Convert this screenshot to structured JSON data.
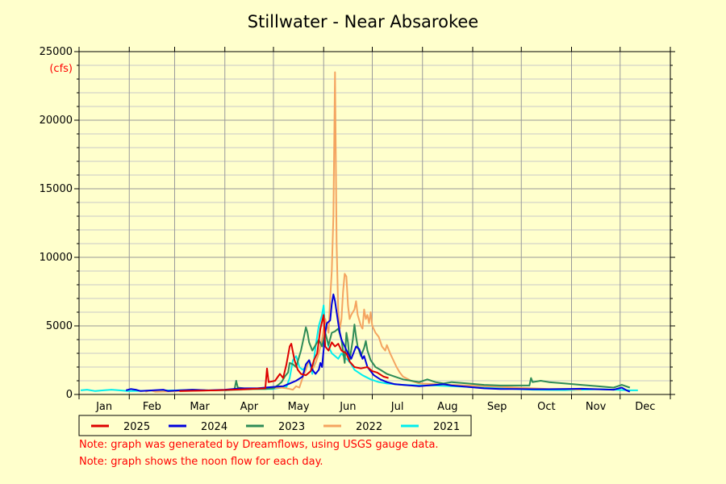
{
  "title": "Stillwater - Near Absarokee",
  "notes": [
    "Note: graph was generated by Dreamflows, using USGS gauge data.",
    "Note: graph shows the noon flow for each day."
  ],
  "chart_data": {
    "type": "line",
    "title": "Stillwater - Near Absarokee",
    "ylabel": "(cfs)",
    "xlabel": "",
    "ylim": [
      0,
      25000
    ],
    "xlim": [
      0,
      365
    ],
    "y_ticks": [
      0,
      5000,
      10000,
      15000,
      20000,
      25000
    ],
    "month_labels": [
      "Jan",
      "Feb",
      "Mar",
      "Apr",
      "May",
      "Jun",
      "Jul",
      "Aug",
      "Sep",
      "Oct",
      "Nov",
      "Dec"
    ],
    "month_starts": [
      0,
      31,
      59,
      90,
      120,
      151,
      181,
      212,
      243,
      273,
      304,
      334,
      365
    ],
    "grid": true,
    "legend_position": "bottom",
    "series": [
      {
        "name": "2025",
        "color": "#dd0000",
        "points": [
          [
            62,
            250
          ],
          [
            75,
            280
          ],
          [
            85,
            300
          ],
          [
            95,
            350
          ],
          [
            105,
            400
          ],
          [
            115,
            450
          ],
          [
            116,
            1900
          ],
          [
            117,
            900
          ],
          [
            121,
            1000
          ],
          [
            124,
            1500
          ],
          [
            126,
            1200
          ],
          [
            128,
            2200
          ],
          [
            130,
            3500
          ],
          [
            131,
            3700
          ],
          [
            133,
            2500
          ],
          [
            135,
            1800
          ],
          [
            137,
            1500
          ],
          [
            140,
            1400
          ],
          [
            143,
            1700
          ],
          [
            145,
            2500
          ],
          [
            147,
            3000
          ],
          [
            149,
            4800
          ],
          [
            151,
            5800
          ],
          [
            152,
            3500
          ],
          [
            154,
            3200
          ],
          [
            156,
            3800
          ],
          [
            158,
            3500
          ],
          [
            160,
            3700
          ],
          [
            162,
            3200
          ],
          [
            165,
            3000
          ],
          [
            167,
            2400
          ],
          [
            170,
            2000
          ],
          [
            174,
            1900
          ],
          [
            178,
            2000
          ],
          [
            181,
            1700
          ],
          [
            184,
            1600
          ],
          [
            188,
            1300
          ],
          [
            191,
            1200
          ]
        ]
      },
      {
        "name": "2024",
        "color": "#0000dd",
        "points": [
          [
            29,
            300
          ],
          [
            32,
            400
          ],
          [
            35,
            350
          ],
          [
            38,
            250
          ],
          [
            52,
            350
          ],
          [
            55,
            250
          ],
          [
            62,
            300
          ],
          [
            70,
            350
          ],
          [
            80,
            300
          ],
          [
            90,
            350
          ],
          [
            100,
            450
          ],
          [
            110,
            450
          ],
          [
            120,
            550
          ],
          [
            126,
            600
          ],
          [
            130,
            800
          ],
          [
            134,
            1000
          ],
          [
            138,
            1300
          ],
          [
            140,
            2200
          ],
          [
            142,
            2500
          ],
          [
            144,
            1800
          ],
          [
            146,
            1500
          ],
          [
            148,
            1800
          ],
          [
            149,
            2300
          ],
          [
            150,
            2000
          ],
          [
            152,
            4500
          ],
          [
            153,
            5200
          ],
          [
            155,
            5400
          ],
          [
            156,
            6600
          ],
          [
            157,
            7300
          ],
          [
            158,
            6800
          ],
          [
            159,
            6000
          ],
          [
            160,
            5200
          ],
          [
            161,
            4500
          ],
          [
            162,
            4000
          ],
          [
            164,
            3500
          ],
          [
            166,
            3000
          ],
          [
            168,
            2600
          ],
          [
            170,
            3200
          ],
          [
            171,
            3500
          ],
          [
            173,
            3300
          ],
          [
            175,
            2600
          ],
          [
            176,
            2800
          ],
          [
            178,
            2000
          ],
          [
            182,
            1400
          ],
          [
            186,
            1100
          ],
          [
            190,
            900
          ],
          [
            195,
            750
          ],
          [
            200,
            700
          ],
          [
            205,
            650
          ],
          [
            210,
            600
          ],
          [
            215,
            650
          ],
          [
            220,
            700
          ],
          [
            225,
            750
          ],
          [
            230,
            650
          ],
          [
            240,
            550
          ],
          [
            250,
            450
          ],
          [
            260,
            400
          ],
          [
            270,
            400
          ],
          [
            280,
            380
          ],
          [
            290,
            380
          ],
          [
            300,
            400
          ],
          [
            310,
            420
          ],
          [
            320,
            380
          ],
          [
            330,
            350
          ],
          [
            335,
            500
          ],
          [
            338,
            300
          ],
          [
            340,
            200
          ]
        ]
      },
      {
        "name": "2023",
        "color": "#2e8b57",
        "points": [
          [
            90,
            300
          ],
          [
            96,
            400
          ],
          [
            97,
            1000
          ],
          [
            98,
            500
          ],
          [
            105,
            400
          ],
          [
            115,
            400
          ],
          [
            120,
            450
          ],
          [
            123,
            700
          ],
          [
            125,
            900
          ],
          [
            127,
            1300
          ],
          [
            129,
            1600
          ],
          [
            130,
            2300
          ],
          [
            132,
            2200
          ],
          [
            134,
            2000
          ],
          [
            136,
            2800
          ],
          [
            137,
            3200
          ],
          [
            139,
            4300
          ],
          [
            140,
            4900
          ],
          [
            141,
            4500
          ],
          [
            142,
            3800
          ],
          [
            144,
            3200
          ],
          [
            146,
            3600
          ],
          [
            148,
            4000
          ],
          [
            150,
            3500
          ],
          [
            152,
            4500
          ],
          [
            154,
            3600
          ],
          [
            156,
            4500
          ],
          [
            158,
            4600
          ],
          [
            160,
            4800
          ],
          [
            162,
            4000
          ],
          [
            164,
            2300
          ],
          [
            165,
            4500
          ],
          [
            166,
            3800
          ],
          [
            167,
            2500
          ],
          [
            169,
            4000
          ],
          [
            170,
            5100
          ],
          [
            171,
            4200
          ],
          [
            172,
            3500
          ],
          [
            174,
            2800
          ],
          [
            176,
            3400
          ],
          [
            177,
            3900
          ],
          [
            178,
            3200
          ],
          [
            180,
            2500
          ],
          [
            183,
            2000
          ],
          [
            186,
            1800
          ],
          [
            190,
            1500
          ],
          [
            195,
            1300
          ],
          [
            200,
            1100
          ],
          [
            205,
            1000
          ],
          [
            210,
            900
          ],
          [
            215,
            1100
          ],
          [
            220,
            900
          ],
          [
            225,
            800
          ],
          [
            230,
            900
          ],
          [
            240,
            800
          ],
          [
            250,
            700
          ],
          [
            260,
            650
          ],
          [
            270,
            650
          ],
          [
            278,
            650
          ],
          [
            279,
            1200
          ],
          [
            280,
            900
          ],
          [
            285,
            1000
          ],
          [
            290,
            900
          ],
          [
            300,
            800
          ],
          [
            310,
            700
          ],
          [
            320,
            600
          ],
          [
            330,
            500
          ],
          [
            335,
            700
          ],
          [
            340,
            500
          ]
        ]
      },
      {
        "name": "2022",
        "color": "#f4a460",
        "points": [
          [
            41,
            200
          ],
          [
            44,
            300
          ],
          [
            47,
            200
          ],
          [
            100,
            350
          ],
          [
            110,
            400
          ],
          [
            120,
            450
          ],
          [
            125,
            500
          ],
          [
            128,
            450
          ],
          [
            130,
            400
          ],
          [
            132,
            350
          ],
          [
            134,
            600
          ],
          [
            136,
            500
          ],
          [
            138,
            1200
          ],
          [
            140,
            1800
          ],
          [
            142,
            2500
          ],
          [
            144,
            1800
          ],
          [
            146,
            2300
          ],
          [
            148,
            3000
          ],
          [
            150,
            4000
          ],
          [
            152,
            5500
          ],
          [
            154,
            4500
          ],
          [
            155,
            7000
          ],
          [
            156,
            9000
          ],
          [
            157,
            13000
          ],
          [
            158,
            23500
          ],
          [
            159,
            11000
          ],
          [
            160,
            6000
          ],
          [
            161,
            4800
          ],
          [
            162,
            5500
          ],
          [
            163,
            7500
          ],
          [
            164,
            8800
          ],
          [
            165,
            8600
          ],
          [
            166,
            6500
          ],
          [
            167,
            5500
          ],
          [
            168,
            5800
          ],
          [
            170,
            6200
          ],
          [
            171,
            6800
          ],
          [
            172,
            5800
          ],
          [
            174,
            5000
          ],
          [
            175,
            4800
          ],
          [
            176,
            6200
          ],
          [
            177,
            5500
          ],
          [
            178,
            5800
          ],
          [
            179,
            5200
          ],
          [
            180,
            6000
          ],
          [
            181,
            5000
          ],
          [
            183,
            4500
          ],
          [
            185,
            4200
          ],
          [
            187,
            3500
          ],
          [
            189,
            3200
          ],
          [
            190,
            3600
          ],
          [
            192,
            3000
          ],
          [
            194,
            2500
          ],
          [
            196,
            2000
          ],
          [
            198,
            1600
          ],
          [
            200,
            1300
          ],
          [
            205,
            1000
          ],
          [
            210,
            800
          ],
          [
            220,
            750
          ],
          [
            230,
            700
          ],
          [
            240,
            650
          ],
          [
            250,
            600
          ],
          [
            260,
            550
          ],
          [
            270,
            500
          ],
          [
            280,
            450
          ],
          [
            290,
            400
          ],
          [
            300,
            400
          ],
          [
            310,
            350
          ]
        ]
      },
      {
        "name": "2021",
        "color": "#00eeee",
        "points": [
          [
            1,
            300
          ],
          [
            5,
            350
          ],
          [
            10,
            250
          ],
          [
            15,
            300
          ],
          [
            20,
            350
          ],
          [
            25,
            300
          ],
          [
            30,
            250
          ],
          [
            60,
            300
          ],
          [
            70,
            350
          ],
          [
            80,
            300
          ],
          [
            90,
            300
          ],
          [
            100,
            350
          ],
          [
            110,
            400
          ],
          [
            120,
            400
          ],
          [
            125,
            500
          ],
          [
            128,
            550
          ],
          [
            130,
            1200
          ],
          [
            132,
            2500
          ],
          [
            134,
            2800
          ],
          [
            136,
            2000
          ],
          [
            138,
            1800
          ],
          [
            140,
            2000
          ],
          [
            142,
            2500
          ],
          [
            144,
            1500
          ],
          [
            146,
            3500
          ],
          [
            148,
            5000
          ],
          [
            150,
            5800
          ],
          [
            151,
            6500
          ],
          [
            152,
            4500
          ],
          [
            154,
            3500
          ],
          [
            156,
            3000
          ],
          [
            158,
            2800
          ],
          [
            160,
            2600
          ],
          [
            162,
            3000
          ],
          [
            164,
            2700
          ],
          [
            166,
            2500
          ],
          [
            168,
            2200
          ],
          [
            170,
            1800
          ],
          [
            175,
            1400
          ],
          [
            180,
            1100
          ],
          [
            185,
            900
          ],
          [
            190,
            800
          ],
          [
            200,
            700
          ],
          [
            210,
            650
          ],
          [
            220,
            650
          ],
          [
            230,
            600
          ],
          [
            240,
            550
          ],
          [
            250,
            500
          ],
          [
            260,
            450
          ],
          [
            270,
            400
          ],
          [
            280,
            350
          ],
          [
            290,
            330
          ],
          [
            300,
            320
          ],
          [
            310,
            350
          ],
          [
            320,
            380
          ],
          [
            330,
            350
          ],
          [
            340,
            300
          ],
          [
            345,
            300
          ]
        ]
      }
    ]
  }
}
